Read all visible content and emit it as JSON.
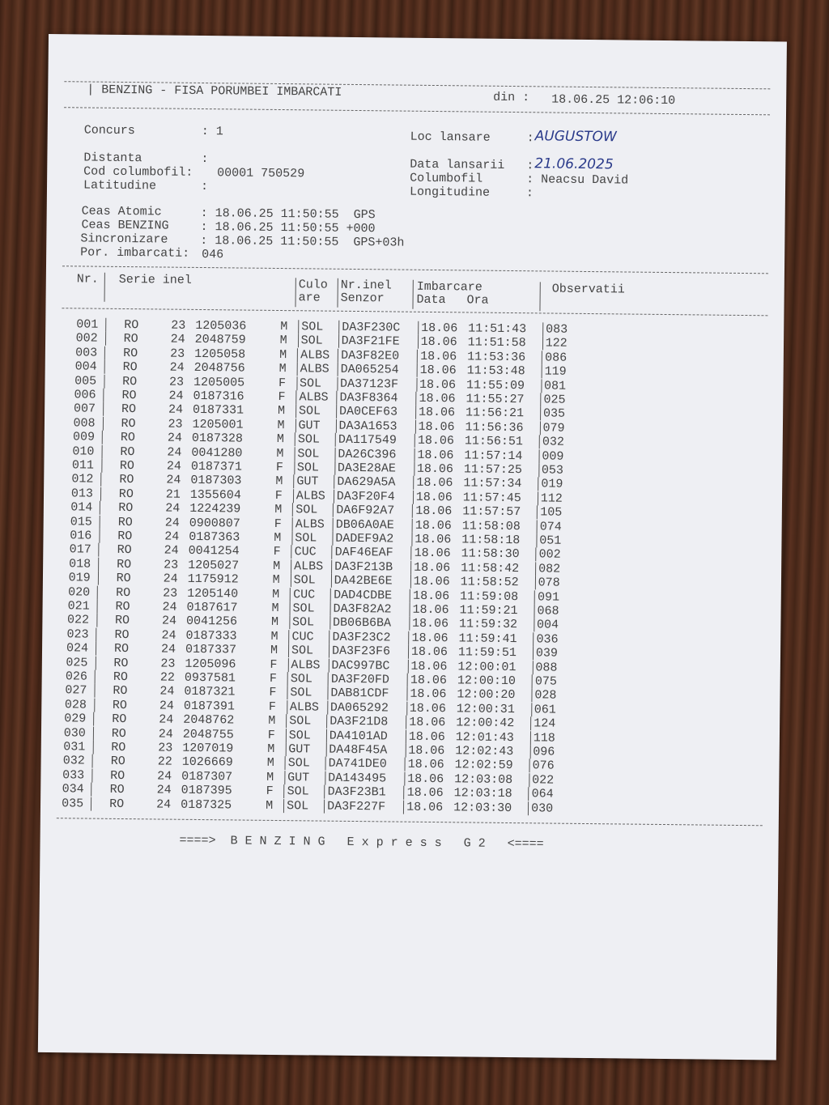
{
  "header": {
    "title": "BENZING - FISA PORUMBEI IMBARCATI",
    "date_label": "din :",
    "date_value": "18.06.25 12:06:10"
  },
  "info": {
    "concurs_label": "Concurs",
    "concurs_value": ": 1",
    "distanta_label": "Distanta",
    "distanta_value": ":",
    "cod_label": "Cod columbofil:",
    "cod_value": "00001 750529",
    "latitudine_label": "Latitudine",
    "latitudine_value": ":",
    "loc_label": "Loc lansare",
    "loc_value": "AUGUSTOW",
    "data_lansarii_label": "Data lansarii",
    "data_lansarii_value": "21.06.2025",
    "columbofil_label": "Columbofil",
    "columbofil_value": ": Neacsu David",
    "longitudine_label": "Longitudine",
    "longitudine_value": ":",
    "ceas_atomic_label": "Ceas Atomic",
    "ceas_atomic_value": ": 18.06.25 11:50:55  GPS",
    "ceas_benzing_label": "Ceas BENZING",
    "ceas_benzing_value": ": 18.06.25 11:50:55 +000",
    "sincronizare_label": "Sincronizare",
    "sincronizare_value": ": 18.06.25 11:50:55  GPS+03h",
    "por_label": "Por. imbarcati:",
    "por_value": "046"
  },
  "table": {
    "headers": {
      "nr": "Nr.",
      "serie": "Serie inel",
      "culoare1": "Culo",
      "culoare2": "are",
      "nrinel1": "Nr.inel",
      "nrinel2": "Senzor",
      "imbarcare": "Imbarcare",
      "data": "Data",
      "ora": "Ora",
      "observatii": "Observatii"
    },
    "rows": [
      [
        "001",
        "RO",
        "23",
        "1205036",
        "M",
        "SOL",
        "DA3F230C",
        "18.06",
        "11:51:43",
        "083"
      ],
      [
        "002",
        "RO",
        "24",
        "2048759",
        "M",
        "SOL",
        "DA3F21FE",
        "18.06",
        "11:51:58",
        "122"
      ],
      [
        "003",
        "RO",
        "23",
        "1205058",
        "M",
        "ALBS",
        "DA3F82E0",
        "18.06",
        "11:53:36",
        "086"
      ],
      [
        "004",
        "RO",
        "24",
        "2048756",
        "M",
        "ALBS",
        "DA065254",
        "18.06",
        "11:53:48",
        "119"
      ],
      [
        "005",
        "RO",
        "23",
        "1205005",
        "F",
        "SOL",
        "DA37123F",
        "18.06",
        "11:55:09",
        "081"
      ],
      [
        "006",
        "RO",
        "24",
        "0187316",
        "F",
        "ALBS",
        "DA3F8364",
        "18.06",
        "11:55:27",
        "025"
      ],
      [
        "007",
        "RO",
        "24",
        "0187331",
        "M",
        "SOL",
        "DA0CEF63",
        "18.06",
        "11:56:21",
        "035"
      ],
      [
        "008",
        "RO",
        "23",
        "1205001",
        "M",
        "GUT",
        "DA3A1653",
        "18.06",
        "11:56:36",
        "079"
      ],
      [
        "009",
        "RO",
        "24",
        "0187328",
        "M",
        "SOL",
        "DA117549",
        "18.06",
        "11:56:51",
        "032"
      ],
      [
        "010",
        "RO",
        "24",
        "0041280",
        "M",
        "SOL",
        "DA26C396",
        "18.06",
        "11:57:14",
        "009"
      ],
      [
        "011",
        "RO",
        "24",
        "0187371",
        "F",
        "SOL",
        "DA3E28AE",
        "18.06",
        "11:57:25",
        "053"
      ],
      [
        "012",
        "RO",
        "24",
        "0187303",
        "M",
        "GUT",
        "DA629A5A",
        "18.06",
        "11:57:34",
        "019"
      ],
      [
        "013",
        "RO",
        "21",
        "1355604",
        "F",
        "ALBS",
        "DA3F20F4",
        "18.06",
        "11:57:45",
        "112"
      ],
      [
        "014",
        "RO",
        "24",
        "1224239",
        "M",
        "SOL",
        "DA6F92A7",
        "18.06",
        "11:57:57",
        "105"
      ],
      [
        "015",
        "RO",
        "24",
        "0900807",
        "F",
        "ALBS",
        "DB06A0AE",
        "18.06",
        "11:58:08",
        "074"
      ],
      [
        "016",
        "RO",
        "24",
        "0187363",
        "M",
        "SOL",
        "DADEF9A2",
        "18.06",
        "11:58:18",
        "051"
      ],
      [
        "017",
        "RO",
        "24",
        "0041254",
        "F",
        "CUC",
        "DAF46EAF",
        "18.06",
        "11:58:30",
        "002"
      ],
      [
        "018",
        "RO",
        "23",
        "1205027",
        "M",
        "ALBS",
        "DA3F213B",
        "18.06",
        "11:58:42",
        "082"
      ],
      [
        "019",
        "RO",
        "24",
        "1175912",
        "M",
        "SOL",
        "DA42BE6E",
        "18.06",
        "11:58:52",
        "078"
      ],
      [
        "020",
        "RO",
        "23",
        "1205140",
        "M",
        "CUC",
        "DAD4CDBE",
        "18.06",
        "11:59:08",
        "091"
      ],
      [
        "021",
        "RO",
        "24",
        "0187617",
        "M",
        "SOL",
        "DA3F82A2",
        "18.06",
        "11:59:21",
        "068"
      ],
      [
        "022",
        "RO",
        "24",
        "0041256",
        "M",
        "SOL",
        "DB06B6BA",
        "18.06",
        "11:59:32",
        "004"
      ],
      [
        "023",
        "RO",
        "24",
        "0187333",
        "M",
        "CUC",
        "DA3F23C2",
        "18.06",
        "11:59:41",
        "036"
      ],
      [
        "024",
        "RO",
        "24",
        "0187337",
        "M",
        "SOL",
        "DA3F23F6",
        "18.06",
        "11:59:51",
        "039"
      ],
      [
        "025",
        "RO",
        "23",
        "1205096",
        "F",
        "ALBS",
        "DAC997BC",
        "18.06",
        "12:00:01",
        "088"
      ],
      [
        "026",
        "RO",
        "22",
        "0937581",
        "F",
        "SOL",
        "DA3F20FD",
        "18.06",
        "12:00:10",
        "075"
      ],
      [
        "027",
        "RO",
        "24",
        "0187321",
        "F",
        "SOL",
        "DAB81CDF",
        "18.06",
        "12:00:20",
        "028"
      ],
      [
        "028",
        "RO",
        "24",
        "0187391",
        "F",
        "ALBS",
        "DA065292",
        "18.06",
        "12:00:31",
        "061"
      ],
      [
        "029",
        "RO",
        "24",
        "2048762",
        "M",
        "SOL",
        "DA3F21D8",
        "18.06",
        "12:00:42",
        "124"
      ],
      [
        "030",
        "RO",
        "24",
        "2048755",
        "F",
        "SOL",
        "DA4101AD",
        "18.06",
        "12:01:43",
        "118"
      ],
      [
        "031",
        "RO",
        "23",
        "1207019",
        "M",
        "GUT",
        "DA48F45A",
        "18.06",
        "12:02:43",
        "096"
      ],
      [
        "032",
        "RO",
        "22",
        "1026669",
        "M",
        "SOL",
        "DA741DE0",
        "18.06",
        "12:02:59",
        "076"
      ],
      [
        "033",
        "RO",
        "24",
        "0187307",
        "M",
        "GUT",
        "DA143495",
        "18.06",
        "12:03:08",
        "022"
      ],
      [
        "034",
        "RO",
        "24",
        "0187395",
        "F",
        "SOL",
        "DA3F23B1",
        "18.06",
        "12:03:18",
        "064"
      ],
      [
        "035",
        "RO",
        "24",
        "0187325",
        "M",
        "SOL",
        "DA3F227F",
        "18.06",
        "12:03:30",
        "030"
      ]
    ]
  },
  "footer": {
    "text": "====>  B E N Z I N G   E x p r e s s   G 2   <===="
  }
}
